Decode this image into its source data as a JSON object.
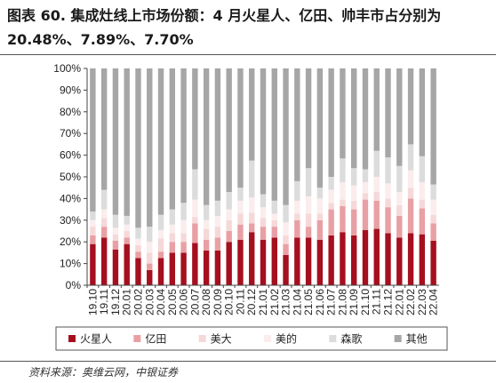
{
  "title": "图表 60. 集成灶线上市场份额：4 月火星人、亿田、帅丰市占分别为 20.48%、7.89%、7.70%",
  "source": "资料来源：奥维云网，中银证券",
  "chart_data": {
    "type": "bar",
    "stacked": true,
    "categories": [
      "19.10",
      "19.11",
      "19.12",
      "20.01",
      "20.02",
      "20.03",
      "20.04",
      "20.05",
      "20.06",
      "20.07",
      "20.08",
      "20.09",
      "20.10",
      "20.11",
      "20.12",
      "21.01",
      "21.02",
      "21.03",
      "21.04",
      "21.05",
      "21.06",
      "21.07",
      "21.08",
      "21.09",
      "21.10",
      "21.11",
      "21.12",
      "22.01",
      "22.02",
      "22.03",
      "22.04"
    ],
    "yticks": [
      "0%",
      "10%",
      "20%",
      "30%",
      "40%",
      "50%",
      "60%",
      "70%",
      "80%",
      "90%",
      "100%"
    ],
    "ylim": [
      0,
      100
    ],
    "legend_position": "bottom",
    "series": [
      {
        "name": "火星人",
        "color": "#A50F1E",
        "values": [
          19,
          22,
          16.5,
          19,
          12.5,
          7,
          12.5,
          15,
          15,
          19.5,
          16,
          16,
          20,
          21,
          24.5,
          21,
          22,
          14,
          22,
          22,
          21,
          23,
          24.5,
          23,
          25.5,
          26,
          24,
          22,
          24,
          23.5,
          20.5
        ]
      },
      {
        "name": "亿田",
        "color": "#E8A0A4",
        "values": [
          4,
          5,
          4,
          3,
          3,
          3,
          3,
          5,
          5,
          9,
          5,
          6,
          5,
          7,
          4,
          6,
          5,
          5,
          8,
          5,
          9,
          12,
          12,
          12,
          14,
          13,
          12,
          10,
          16,
          12,
          8
        ]
      },
      {
        "name": "美大",
        "color": "#F6D8D8",
        "values": [
          4,
          4,
          3,
          3,
          3,
          5,
          6,
          4,
          4,
          3,
          5,
          5,
          5,
          5,
          5,
          4,
          3,
          4,
          3,
          6,
          3,
          3,
          3,
          4,
          3,
          4,
          4,
          5,
          5,
          4,
          4
        ]
      },
      {
        "name": "美的",
        "color": "#FBEDED",
        "values": [
          3,
          4,
          3,
          3,
          3,
          5,
          4,
          4,
          6,
          8,
          4,
          5,
          5,
          6,
          7,
          5,
          3,
          6,
          6,
          8,
          7,
          6,
          8,
          7,
          5,
          7,
          7,
          6,
          8,
          8,
          7
        ]
      },
      {
        "name": "森歌",
        "color": "#DCDCDC",
        "values": [
          4,
          9,
          6,
          4,
          5,
          7,
          7,
          7,
          8,
          14,
          7,
          7,
          8,
          6,
          17,
          6,
          6,
          8,
          9,
          13,
          5,
          6,
          11,
          8,
          6,
          12,
          12,
          12,
          12,
          12,
          7
        ]
      },
      {
        "name": "其他",
        "color": "#A6A6A6",
        "values": [
          66,
          56,
          67.5,
          68,
          73.5,
          73,
          67.5,
          65,
          62,
          46.5,
          63,
          61,
          57,
          55,
          42.5,
          58,
          61,
          63,
          52,
          46,
          55,
          50,
          41.5,
          46,
          46.5,
          38,
          41,
          45,
          35,
          40.5,
          53.5
        ]
      }
    ]
  }
}
